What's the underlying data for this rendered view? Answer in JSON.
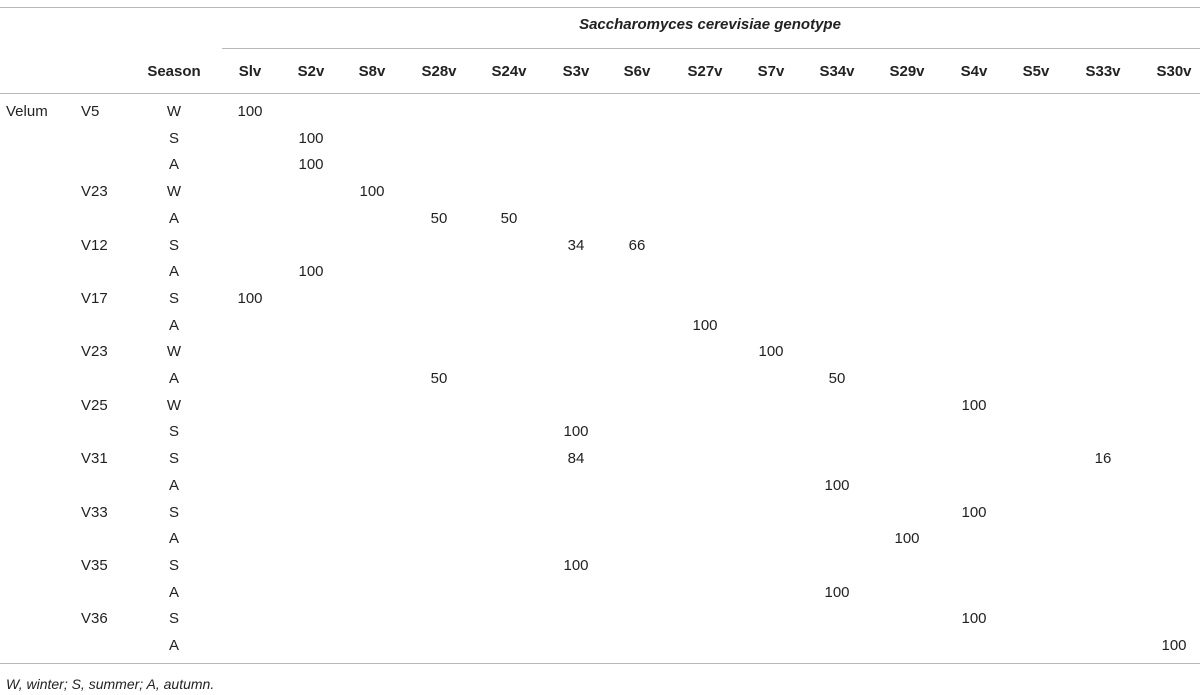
{
  "table": {
    "title_italic": "Saccharomyces cerevisiae",
    "title_rest": " genotype",
    "season_header": "Season",
    "genotypes": [
      "Slv",
      "S2v",
      "S8v",
      "S28v",
      "S24v",
      "S3v",
      "S6v",
      "S27v",
      "S7v",
      "S34v",
      "S29v",
      "S4v",
      "S5v",
      "S33v",
      "S30v"
    ],
    "category": "Velum",
    "rows": [
      {
        "velum": "V5",
        "season": "W",
        "values": {
          "0": "100"
        }
      },
      {
        "velum": "",
        "season": "S",
        "values": {
          "1": "100"
        }
      },
      {
        "velum": "",
        "season": "A",
        "values": {
          "1": "100"
        }
      },
      {
        "velum": "V23",
        "season": "W",
        "values": {
          "2": "100"
        }
      },
      {
        "velum": "",
        "season": "A",
        "values": {
          "3": "50",
          "4": "50"
        }
      },
      {
        "velum": "V12",
        "season": "S",
        "values": {
          "5": "34",
          "6": "66"
        }
      },
      {
        "velum": "",
        "season": "A",
        "values": {
          "1": "100"
        }
      },
      {
        "velum": "V17",
        "season": "S",
        "values": {
          "0": "100"
        }
      },
      {
        "velum": "",
        "season": "A",
        "values": {
          "7": "100"
        }
      },
      {
        "velum": "V23",
        "season": "W",
        "values": {
          "8": "100"
        }
      },
      {
        "velum": "",
        "season": "A",
        "values": {
          "3": "50",
          "9": "50"
        }
      },
      {
        "velum": "V25",
        "season": "W",
        "values": {
          "11": "100"
        }
      },
      {
        "velum": "",
        "season": "S",
        "values": {
          "5": "100"
        }
      },
      {
        "velum": "V31",
        "season": "S",
        "values": {
          "5": "84",
          "13": "16"
        }
      },
      {
        "velum": "",
        "season": "A",
        "values": {
          "9": "100"
        }
      },
      {
        "velum": "V33",
        "season": "S",
        "values": {
          "11": "100"
        }
      },
      {
        "velum": "",
        "season": "A",
        "values": {
          "10": "100"
        }
      },
      {
        "velum": "V35",
        "season": "S",
        "values": {
          "5": "100"
        }
      },
      {
        "velum": "",
        "season": "A",
        "values": {
          "9": "100"
        }
      },
      {
        "velum": "V36",
        "season": "S",
        "values": {
          "11": "100"
        }
      },
      {
        "velum": "",
        "season": "A",
        "values": {
          "14": "100"
        }
      }
    ]
  },
  "footnote": "W, winter; S, summer; A, autumn."
}
